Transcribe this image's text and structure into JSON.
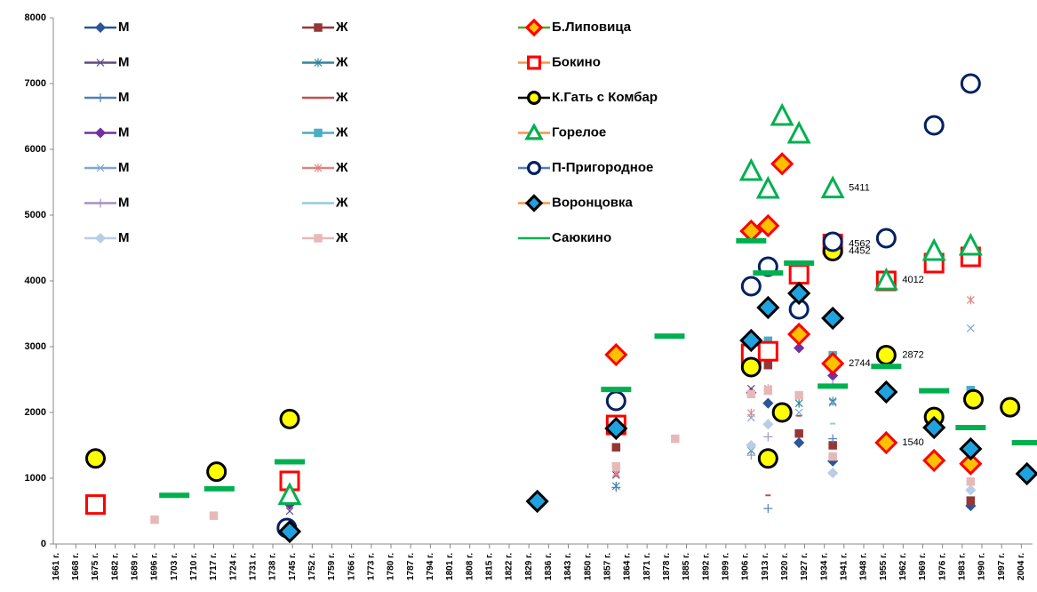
{
  "chart_data": {
    "type": "scatter",
    "xlim": [
      1660,
      2008
    ],
    "ylim": [
      0,
      8000
    ],
    "yticks": [
      0,
      1000,
      2000,
      3000,
      4000,
      5000,
      6000,
      7000,
      8000
    ],
    "xticks": [
      {
        "value": 1661,
        "label": "1661 г."
      },
      {
        "value": 1668,
        "label": "1668 г."
      },
      {
        "value": 1675,
        "label": "1675 г."
      },
      {
        "value": 1682,
        "label": "1682 г."
      },
      {
        "value": 1689,
        "label": "1689 г."
      },
      {
        "value": 1696,
        "label": "1696 г."
      },
      {
        "value": 1703,
        "label": "1703 г."
      },
      {
        "value": 1710,
        "label": "1710 г."
      },
      {
        "value": 1717,
        "label": "1717 г."
      },
      {
        "value": 1724,
        "label": "1724 г."
      },
      {
        "value": 1731,
        "label": "1731 г."
      },
      {
        "value": 1738,
        "label": "1738 г."
      },
      {
        "value": 1745,
        "label": "1745 г."
      },
      {
        "value": 1752,
        "label": "1752 г."
      },
      {
        "value": 1759,
        "label": "1759 г."
      },
      {
        "value": 1766,
        "label": "1766 г."
      },
      {
        "value": 1773,
        "label": "1773 г."
      },
      {
        "value": 1780,
        "label": "1780 г."
      },
      {
        "value": 1787,
        "label": "1787 г."
      },
      {
        "value": 1794,
        "label": "1794 г."
      },
      {
        "value": 1801,
        "label": "1801 г."
      },
      {
        "value": 1808,
        "label": "1808 г."
      },
      {
        "value": 1815,
        "label": "1815 г."
      },
      {
        "value": 1822,
        "label": "1822 г."
      },
      {
        "value": 1829,
        "label": "1829 г."
      },
      {
        "value": 1836,
        "label": "1836 г."
      },
      {
        "value": 1843,
        "label": "1843 г."
      },
      {
        "value": 1850,
        "label": "1850 г."
      },
      {
        "value": 1857,
        "label": "1857 г."
      },
      {
        "value": 1864,
        "label": "1864 г."
      },
      {
        "value": 1871,
        "label": "1871 г."
      },
      {
        "value": 1878,
        "label": "1878 г."
      },
      {
        "value": 1885,
        "label": "1885 г."
      },
      {
        "value": 1892,
        "label": "1892 г."
      },
      {
        "value": 1899,
        "label": "1899 г."
      },
      {
        "value": 1906,
        "label": "1906 г."
      },
      {
        "value": 1913,
        "label": "1913 г."
      },
      {
        "value": 1920,
        "label": "1920 г."
      },
      {
        "value": 1927,
        "label": "1927 г."
      },
      {
        "value": 1934,
        "label": "1934 г."
      },
      {
        "value": 1941,
        "label": "1941 г."
      },
      {
        "value": 1948,
        "label": "1948 г."
      },
      {
        "value": 1955,
        "label": "1955 г."
      },
      {
        "value": 1962,
        "label": "1962 г."
      },
      {
        "value": 1969,
        "label": "1969 г."
      },
      {
        "value": 1976,
        "label": "1976 г."
      },
      {
        "value": 1983,
        "label": "1983 г."
      },
      {
        "value": 1990,
        "label": "1990 г."
      },
      {
        "value": 1997,
        "label": "1997 г."
      },
      {
        "value": 2004,
        "label": "2004 г."
      }
    ],
    "series": [
      {
        "name": "М",
        "color": "#2e5597",
        "marker": "diamond",
        "x": [
          1914,
          1925,
          1937,
          1986
        ],
        "values": [
          2140,
          1540,
          1260,
          580
        ]
      },
      {
        "name": "Ж",
        "color": "#953735",
        "marker": "square",
        "x": [
          1860,
          1914,
          1925,
          1937,
          1986
        ],
        "values": [
          1470,
          2720,
          1680,
          1500,
          660
        ]
      },
      {
        "name": "Б.Липовица",
        "color": "#ff0000",
        "fill": "#ffc000",
        "line": "#4ea72e",
        "marker": "diamond",
        "big": true,
        "x": [
          1860,
          1908,
          1914,
          1919,
          1925,
          1937,
          1956,
          1973,
          1986
        ],
        "values": [
          2878,
          4757,
          4838,
          5780,
          3189,
          2744,
          1540,
          1270,
          1220
        ],
        "value_labels": [
          null,
          null,
          null,
          null,
          null,
          "2744",
          "1540",
          null,
          null
        ]
      },
      {
        "name": "М",
        "color": "#604a7b",
        "marker": "x",
        "x": [
          1744,
          1860,
          1908,
          1937
        ],
        "values": [
          500,
          1050,
          2360,
          2150
        ]
      },
      {
        "name": "Ж",
        "color": "#31859c",
        "marker": "star",
        "x": [
          1860,
          1908,
          1925,
          1937
        ],
        "values": [
          880,
          1420,
          2140,
          2170
        ]
      },
      {
        "name": "Бокино",
        "color": "#ff0000",
        "fill": "#ffffff",
        "line": "#f79646",
        "marker": "square",
        "big": true,
        "x": [
          1675,
          1744,
          1860,
          1908,
          1914,
          1925,
          1937,
          1956,
          1973,
          1986
        ],
        "values": [
          600,
          960,
          1810,
          2890,
          2930,
          4100,
          4562,
          4000,
          4270,
          4365
        ],
        "value_labels": [
          null,
          null,
          null,
          null,
          null,
          null,
          "4562",
          null,
          null,
          null
        ]
      },
      {
        "name": "М",
        "color": "#4f81bd",
        "marker": "plus",
        "x": [
          1744,
          1860,
          1914,
          1937
        ],
        "values": [
          930,
          860,
          540,
          1600
        ]
      },
      {
        "name": "Ж",
        "color": "#c0504d",
        "marker": "dash",
        "x": [
          1914,
          1925,
          1986
        ],
        "values": [
          740,
          1950,
          1210
        ]
      },
      {
        "name": "К.Гать с Комбар",
        "color": "#000000",
        "fill": "#ffff00",
        "line": "#000000",
        "marker": "circle",
        "big": true,
        "x": [
          1675,
          1718,
          1744,
          1908,
          1914,
          1919,
          1937,
          1956,
          1973,
          1987,
          2000
        ],
        "values": [
          1300,
          1100,
          1900,
          2690,
          1300,
          2000,
          4452,
          2872,
          1930,
          2200,
          2080
        ],
        "value_labels": [
          null,
          null,
          null,
          null,
          null,
          null,
          "4452",
          "2872",
          null,
          null,
          null
        ]
      },
      {
        "name": "М",
        "color": "#7030a0",
        "marker": "diamond",
        "x": [
          1744,
          1908,
          1925,
          1937,
          1986
        ],
        "values": [
          600,
          2300,
          2980,
          2560,
          2200
        ]
      },
      {
        "name": "Ж",
        "color": "#4bacc6",
        "marker": "square",
        "x": [
          1908,
          1914,
          1925,
          1937,
          1986
        ],
        "values": [
          2860,
          3090,
          3250,
          2870,
          2340
        ]
      },
      {
        "name": "Горелое",
        "color": "#00b050",
        "fill": "#ffffff",
        "line": "#f79646",
        "marker": "triangle",
        "big": true,
        "x": [
          1744,
          1908,
          1914,
          1919,
          1925,
          1937,
          1956,
          1973,
          1986
        ],
        "values": [
          750,
          5676,
          5405,
          6514,
          6243,
          5411,
          4012,
          4459,
          4540
        ],
        "value_labels": [
          null,
          null,
          null,
          null,
          null,
          "5411",
          "4012",
          null,
          null
        ]
      },
      {
        "name": "М",
        "color": "#7ea6d9",
        "marker": "x",
        "x": [
          1908,
          1925,
          1937,
          1986
        ],
        "values": [
          1920,
          2000,
          2150,
          3280
        ]
      },
      {
        "name": "Ж",
        "color": "#e0837f",
        "marker": "star",
        "x": [
          1744,
          1860,
          1908,
          1914,
          1986
        ],
        "values": [
          820,
          1080,
          1990,
          2360,
          3710
        ]
      },
      {
        "name": "П-Пригородное",
        "color": "#002060",
        "fill": "#ffffff",
        "line": "#4f81bd",
        "marker": "circle",
        "big": true,
        "x": [
          1743,
          1860,
          1908,
          1914,
          1925,
          1937,
          1956,
          1973,
          1986
        ],
        "values": [
          243,
          2176,
          3919,
          4216,
          3568,
          4595,
          4649,
          6365,
          7000
        ]
      },
      {
        "name": "М",
        "color": "#a591c2",
        "marker": "plus",
        "x": [
          1744,
          1908,
          1914,
          1937
        ],
        "values": [
          700,
          1350,
          1630,
          2430
        ]
      },
      {
        "name": "Ж",
        "color": "#92cddc",
        "marker": "dash",
        "x": [
          1914,
          1937
        ],
        "values": [
          1800,
          1830
        ]
      },
      {
        "name": "Воронцовка",
        "color": "#000000",
        "fill": "#1fa2e0",
        "line": "#f79646",
        "marker": "diamond",
        "big": true,
        "x": [
          1744,
          1832,
          1860,
          1908,
          1914,
          1925,
          1937,
          1956,
          1973,
          1986,
          2006
        ],
        "values": [
          189,
          649,
          1757,
          3095,
          3595,
          3811,
          3432,
          2311,
          1770,
          1446,
          1068
        ]
      },
      {
        "name": "М",
        "color": "#b9cde5",
        "marker": "diamond",
        "x": [
          1908,
          1914,
          1937,
          1986
        ],
        "values": [
          1500,
          1820,
          1080,
          820
        ]
      },
      {
        "name": "Ж",
        "color": "#e6b9b8",
        "marker": "square",
        "x": [
          1696,
          1717,
          1744,
          1860,
          1881,
          1908,
          1914,
          1925,
          1937,
          1986
        ],
        "values": [
          370,
          430,
          680,
          1180,
          1600,
          2280,
          2330,
          2260,
          1330,
          950
        ]
      },
      {
        "name": "Саюкино",
        "color": "#00b050",
        "fill": "#00b050",
        "line": "#00b050",
        "marker": "dash",
        "big": true,
        "x": [
          1703,
          1719,
          1744,
          1860,
          1879,
          1908,
          1914,
          1925,
          1937,
          1956,
          1973,
          1986,
          2006
        ],
        "values": [
          740,
          840,
          1250,
          2350,
          3160,
          4610,
          4120,
          4270,
          2400,
          2700,
          2330,
          1770,
          1540
        ]
      }
    ]
  }
}
